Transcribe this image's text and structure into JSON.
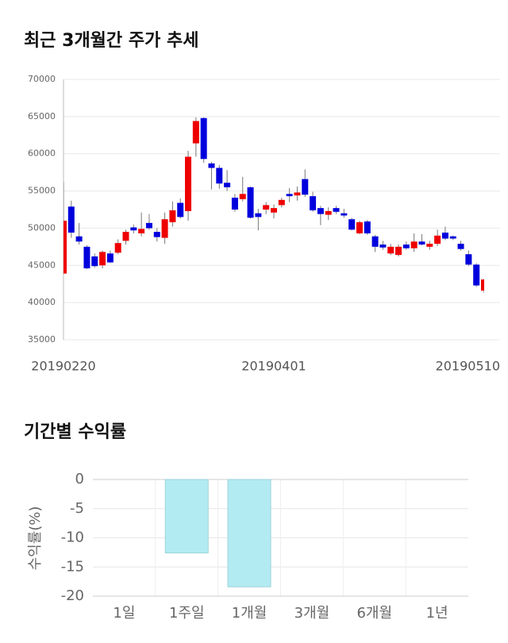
{
  "chart_data": [
    {
      "type": "candlestick",
      "title": "최근 3개월간 주가 추세",
      "categories": [
        "20190220",
        null,
        null,
        null,
        null,
        null,
        null,
        null,
        null,
        null,
        null,
        null,
        null,
        null,
        null,
        null,
        null,
        null,
        null,
        null,
        null,
        null,
        null,
        null,
        null,
        null,
        null,
        "20190401",
        null,
        null,
        null,
        null,
        null,
        null,
        null,
        null,
        null,
        null,
        null,
        null,
        null,
        null,
        null,
        null,
        null,
        null,
        null,
        null,
        null,
        null,
        null,
        null,
        null,
        null,
        "20190510"
      ],
      "open": [
        43900,
        52900,
        48900,
        47500,
        46200,
        45000,
        46600,
        46700,
        48300,
        50100,
        49300,
        50700,
        49500,
        48700,
        50800,
        53400,
        52300,
        61400,
        64800,
        58700,
        58100,
        56100,
        54100,
        53900,
        55500,
        52000,
        52500,
        52100,
        53100,
        54600,
        54400,
        56600,
        54300,
        52700,
        51800,
        52700,
        52000,
        51200,
        49300,
        50900,
        48900,
        47800,
        46600,
        46400,
        47800,
        47300,
        48200,
        47500,
        47900,
        49400,
        48900,
        47900,
        46500,
        45100,
        41600
      ],
      "high": [
        56200,
        53700,
        50700,
        47700,
        46600,
        47000,
        47000,
        48500,
        49800,
        50500,
        52100,
        51900,
        50000,
        52100,
        53600,
        54000,
        60400,
        64900,
        64900,
        58900,
        58500,
        57800,
        54600,
        56900,
        55600,
        52600,
        53500,
        53200,
        54100,
        55400,
        55600,
        57900,
        54900,
        53000,
        52800,
        53000,
        52600,
        51400,
        51000,
        51100,
        49100,
        48300,
        47900,
        47800,
        48200,
        49300,
        49200,
        48300,
        49800,
        50200,
        49000,
        48300,
        47000,
        45300,
        43200
      ],
      "low": [
        43800,
        48700,
        47800,
        44500,
        44700,
        44600,
        45300,
        46500,
        47800,
        49300,
        48900,
        49800,
        48200,
        47900,
        50200,
        51300,
        51000,
        59600,
        58800,
        55200,
        55300,
        55000,
        52200,
        53600,
        51300,
        49700,
        51900,
        51300,
        52800,
        53500,
        53700,
        54200,
        52200,
        50400,
        51100,
        51900,
        51400,
        49700,
        49200,
        49100,
        46800,
        47100,
        46400,
        46200,
        47100,
        46800,
        47700,
        47100,
        47600,
        48400,
        48400,
        47000,
        44900,
        42100,
        41300
      ],
      "close": [
        51000,
        49400,
        48200,
        44600,
        44900,
        46800,
        45400,
        48000,
        49500,
        49700,
        49900,
        50000,
        48800,
        51200,
        52400,
        51500,
        59600,
        64400,
        59300,
        58100,
        56000,
        55500,
        52500,
        54600,
        51400,
        51500,
        53100,
        52700,
        53800,
        54300,
        54800,
        54500,
        52400,
        51900,
        52300,
        52200,
        51700,
        49800,
        50800,
        49300,
        47500,
        47400,
        47500,
        47500,
        47300,
        48200,
        47800,
        47900,
        49000,
        48600,
        48600,
        47200,
        45100,
        42300,
        43100
      ],
      "up_color": "#ee0000",
      "down_color": "#0000dd",
      "ylim": [
        35000,
        70000
      ],
      "yticks": [
        35000,
        40000,
        45000,
        50000,
        55000,
        60000,
        65000,
        70000
      ],
      "grid": true
    },
    {
      "type": "bar",
      "title": "기간별 수익률",
      "ylabel": "수익률(%)",
      "categories": [
        "1일",
        "1주일",
        "1개월",
        "3개월",
        "6개월",
        "1년"
      ],
      "values": [
        null,
        -12.6,
        -18.4,
        null,
        null,
        null
      ],
      "color": "#b3ebf2",
      "ylim": [
        -20,
        0
      ],
      "yticks": [
        -20,
        -15,
        -10,
        -5,
        0
      ],
      "grid": true
    }
  ]
}
